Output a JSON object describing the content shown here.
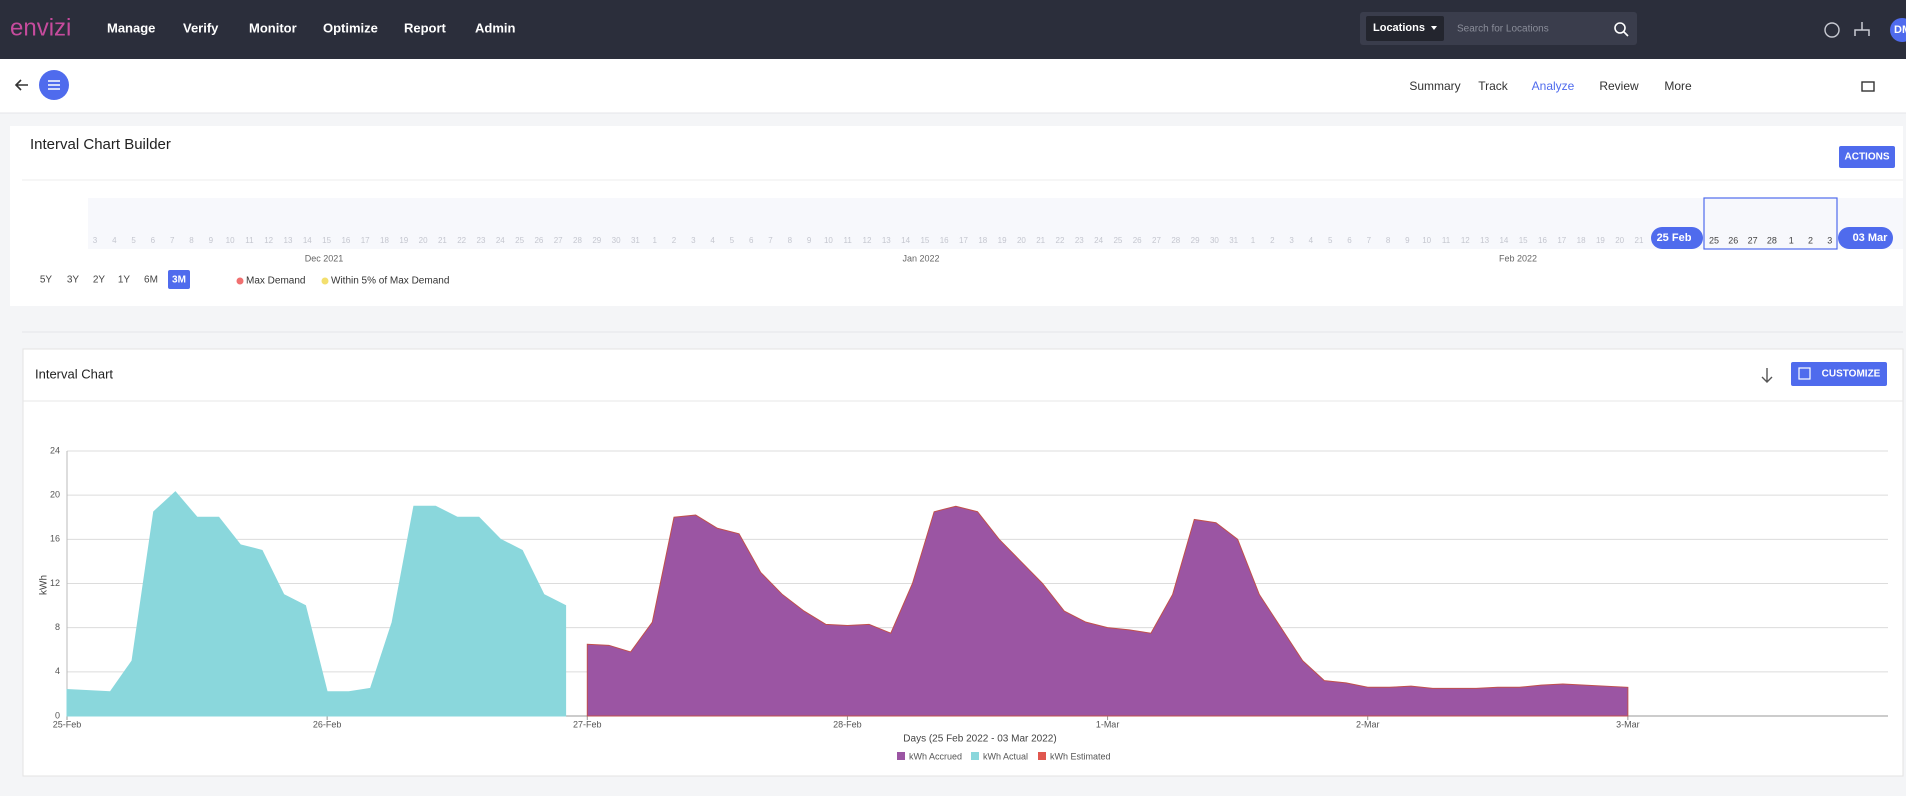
{
  "nav": {
    "logo": "envizi",
    "menu": [
      "Manage",
      "Verify",
      "Monitor",
      "Optimize",
      "Report",
      "Admin"
    ],
    "search": {
      "scope": "Locations",
      "placeholder": "Search for Locations"
    },
    "avatar": "DM"
  },
  "subnav": {
    "tabs": [
      "Summary",
      "Track",
      "Analyze",
      "Review",
      "More"
    ],
    "active": 2
  },
  "builder": {
    "title": "Interval Chart Builder",
    "action": "ACTIONS",
    "timeline": {
      "days": [
        3,
        4,
        5,
        6,
        7,
        8,
        9,
        10,
        11,
        12,
        13,
        14,
        15,
        16,
        17,
        18,
        19,
        20,
        21,
        22,
        23,
        24,
        25,
        26,
        27,
        28,
        29,
        30,
        31,
        1,
        2,
        3,
        4,
        5,
        6,
        7,
        8,
        9,
        10,
        11,
        12,
        13,
        14,
        15,
        16,
        17,
        18,
        19,
        20,
        21,
        22,
        23,
        24,
        25,
        26,
        27,
        28,
        29,
        30,
        31,
        1,
        2,
        3,
        4,
        5,
        6,
        7,
        8,
        9,
        10,
        11,
        12,
        13,
        14,
        15,
        16,
        17,
        18,
        19,
        20,
        21
      ],
      "months": [
        "Dec 2021",
        "Jan 2022",
        "Feb 2022"
      ],
      "selected_days": [
        25,
        26,
        27,
        28,
        1,
        2,
        3
      ],
      "start": "25 Feb",
      "end": "03 Mar"
    },
    "ranges": [
      "5Y",
      "3Y",
      "2Y",
      "1Y",
      "6M",
      "3M"
    ],
    "active_range": 5,
    "legend": [
      {
        "name": "Max Demand",
        "color": "#f07070"
      },
      {
        "name": "Within 5% of Max Demand",
        "color": "#f3df6e"
      }
    ]
  },
  "panel": {
    "title": "Interval Chart",
    "button": "CUSTOMIZE"
  },
  "chart_data": {
    "type": "area",
    "y_label": "kWh",
    "x_label": "Days (25 Feb 2022 - 03 Mar 2022)",
    "xlim": [
      0,
      168
    ],
    "xticks": [
      {
        "value": 0,
        "label": "25-Feb"
      },
      {
        "value": 24,
        "label": "26-Feb"
      },
      {
        "value": 48,
        "label": "27-Feb"
      },
      {
        "value": 72,
        "label": "28-Feb"
      },
      {
        "value": 96,
        "label": "1-Mar"
      },
      {
        "value": 120,
        "label": "2-Mar"
      },
      {
        "value": 144,
        "label": "3-Mar"
      }
    ],
    "ylim": [
      0,
      24
    ],
    "yticks": [
      0,
      4,
      8,
      12,
      16,
      20,
      24
    ],
    "grid": true,
    "x": [
      0,
      2,
      4,
      6,
      8,
      10,
      12,
      14,
      16,
      18,
      20,
      22,
      24,
      26,
      28,
      30,
      32,
      34,
      36,
      38,
      40,
      42,
      44,
      46,
      48,
      50,
      52,
      54,
      56,
      58,
      60,
      62,
      64,
      66,
      68,
      70,
      72,
      74,
      76,
      78,
      80,
      82,
      84,
      86,
      88,
      90,
      92,
      94,
      96,
      98,
      100,
      102,
      104,
      106,
      108,
      110,
      112,
      114,
      116,
      118,
      120,
      122,
      124,
      126,
      128,
      130,
      132,
      134,
      136,
      138,
      140,
      142,
      144
    ],
    "series": [
      {
        "name": "kWh Accrued",
        "color": "#9b55a3",
        "values": [
          null,
          null,
          null,
          null,
          null,
          null,
          null,
          null,
          null,
          null,
          null,
          null,
          null,
          null,
          null,
          null,
          null,
          null,
          null,
          null,
          null,
          null,
          null,
          null,
          6.5,
          6.4,
          5.8,
          8.5,
          18,
          18.2,
          17,
          16.5,
          13,
          11,
          9.5,
          8.3,
          8.2,
          8.3,
          7.5,
          12,
          18.5,
          19,
          18.5,
          16,
          14,
          12,
          9.5,
          8.5,
          8,
          7.8,
          7.5,
          11,
          17.8,
          17.5,
          16,
          11,
          8,
          5,
          3.2,
          3,
          2.6,
          2.6,
          2.7,
          2.5,
          2.5,
          2.5,
          2.6,
          2.6,
          2.8,
          2.9,
          2.8,
          2.7,
          2.6
        ]
      },
      {
        "name": "kWh Actual",
        "color": "#8ad7dc",
        "values": [
          2.4,
          2.3,
          2.2,
          5,
          18.5,
          20.3,
          18,
          18,
          15.5,
          15,
          11,
          10,
          2.2,
          2.2,
          2.5,
          8.5,
          19,
          19,
          18,
          18,
          16,
          15,
          11,
          10,
          null,
          null,
          null,
          null,
          null,
          null,
          null,
          null,
          null,
          null,
          null,
          null,
          null,
          null,
          null,
          null,
          null,
          null,
          null,
          null,
          null,
          null,
          null,
          null,
          null,
          null,
          null,
          null,
          null,
          null,
          null,
          null,
          null,
          null,
          null,
          null,
          null,
          null,
          null,
          null,
          null,
          null,
          null,
          null,
          null,
          null,
          null,
          null,
          null
        ]
      },
      {
        "name": "kWh Estimated",
        "color": "#e0574f",
        "values": [
          null,
          null,
          null,
          null,
          null,
          null,
          null,
          null,
          null,
          null,
          null,
          null,
          null,
          null,
          null,
          null,
          null,
          null,
          null,
          null,
          null,
          null,
          null,
          null,
          null,
          null,
          null,
          null,
          null,
          null,
          null,
          null,
          null,
          null,
          null,
          null,
          null,
          null,
          null,
          null,
          null,
          null,
          null,
          null,
          null,
          null,
          null,
          null,
          null,
          null,
          null,
          null,
          null,
          null,
          null,
          null,
          null,
          null,
          null,
          null,
          null,
          null,
          null,
          null,
          null,
          null,
          null,
          null,
          null,
          null,
          null,
          null,
          null
        ]
      }
    ]
  }
}
